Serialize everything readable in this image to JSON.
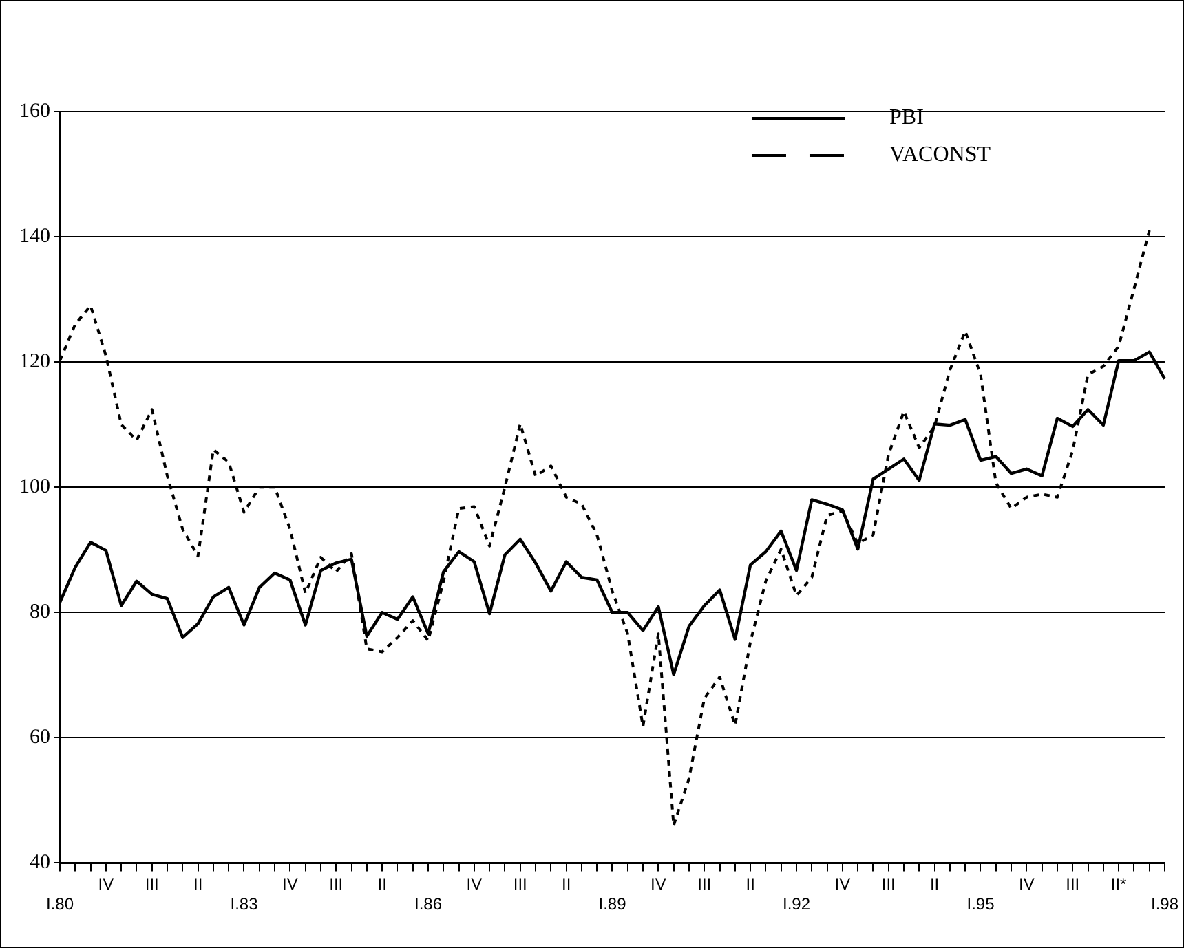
{
  "chart_data": {
    "type": "line",
    "categories": [
      "I.80",
      null,
      null,
      "IV",
      null,
      null,
      "III",
      null,
      null,
      "II",
      null,
      null,
      "I.83",
      null,
      null,
      "IV",
      null,
      null,
      "III",
      null,
      null,
      "II",
      null,
      null,
      "I.86",
      null,
      null,
      "IV",
      null,
      null,
      "III",
      null,
      null,
      "II",
      null,
      null,
      "I.89",
      null,
      null,
      "IV",
      null,
      null,
      "III",
      null,
      null,
      "II",
      null,
      null,
      "I.92",
      null,
      null,
      "IV",
      null,
      null,
      "III",
      null,
      null,
      "II",
      null,
      null,
      "I.95",
      null,
      null,
      "IV",
      null,
      null,
      "III",
      null,
      null,
      "II*",
      null,
      null,
      "I.98"
    ],
    "series": [
      {
        "name": "PBI",
        "color": "#000000",
        "line_style": "solid",
        "values": [
          81.6,
          87.2,
          91.2,
          89.9,
          81.1,
          85,
          82.9,
          82.2,
          76,
          78.2,
          82.5,
          84,
          78,
          84,
          86.3,
          85.2,
          78,
          86.7,
          87.9,
          88.5,
          76.2,
          80,
          78.9,
          82.5,
          76.6,
          86.5,
          89.7,
          88.1,
          79.8,
          89.2,
          91.7,
          87.9,
          83.4,
          88.1,
          85.6,
          85.2,
          80,
          80,
          77.1,
          80.9,
          70.1,
          77.8,
          81.1,
          83.6,
          75.7,
          87.6,
          89.7,
          93,
          86.7,
          98,
          97.3,
          96.4,
          90.1,
          101.3,
          102.9,
          104.5,
          101.1,
          110.1,
          109.9,
          110.8,
          104.3,
          104.9,
          102.2,
          102.9,
          101.8,
          111,
          109.7,
          112.4,
          109.9,
          120.2,
          120.2,
          121.6,
          117.3
        ]
      },
      {
        "name": "VACONST",
        "color": "#000000",
        "line_style": "dashed",
        "values": [
          120.2,
          126,
          129,
          121,
          110,
          107.5,
          112.4,
          101.8,
          93.3,
          89,
          106,
          104,
          96,
          100,
          100,
          93.3,
          83.1,
          88.8,
          86.5,
          89.4,
          74.2,
          73.7,
          76,
          78.7,
          75.5,
          85,
          96.6,
          96.9,
          90.6,
          100,
          110.1,
          101.8,
          103.4,
          98.4,
          97.3,
          92.4,
          83.4,
          76.6,
          61.8,
          76.6,
          46,
          53.5,
          66.3,
          69.7,
          62,
          75.3,
          85,
          90.1,
          82.7,
          85.6,
          95.5,
          96.2,
          91,
          92.4,
          105.2,
          112.1,
          106.3,
          109.7,
          118.7,
          124.9,
          118,
          100.7,
          96.6,
          98.4,
          98.9,
          98.4,
          105.8,
          118,
          119.3,
          122.5,
          131.7,
          141,
          null
        ]
      }
    ],
    "ylim": [
      40,
      160
    ],
    "yticks": [
      40,
      60,
      80,
      100,
      120,
      140,
      160
    ],
    "grid": "y",
    "legend": "top right",
    "marker": "none"
  }
}
